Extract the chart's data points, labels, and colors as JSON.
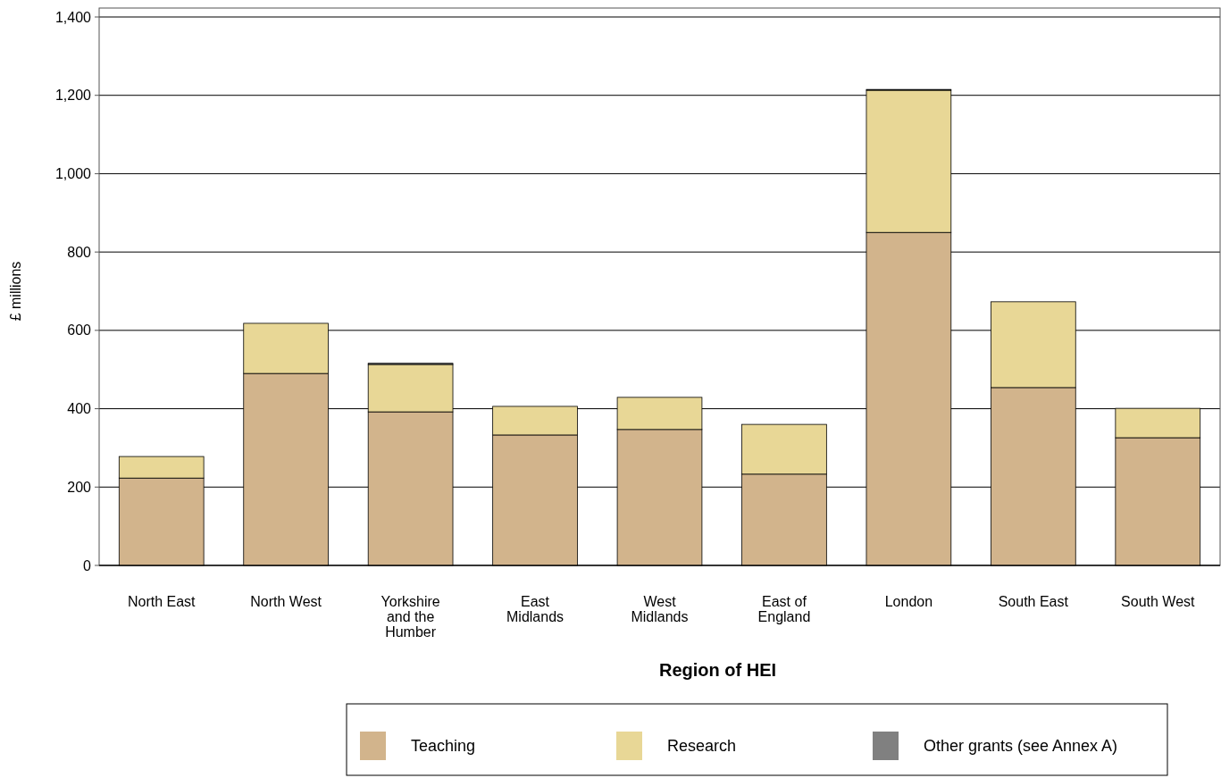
{
  "chart_data": {
    "type": "bar",
    "stacked": true,
    "xlabel": "Region of HEI",
    "ylabel": "£ millions",
    "categories": [
      "North East",
      "North West",
      "Yorkshire and the Humber",
      "East Midlands",
      "West Midlands",
      "East of England",
      "London",
      "South East",
      "South West"
    ],
    "series": [
      {
        "name": "Teaching",
        "color": "#d2b48c",
        "values": [
          223,
          490,
          392,
          333,
          347,
          233,
          850,
          454,
          326
        ]
      },
      {
        "name": "Research",
        "color": "#e8d796",
        "values": [
          55,
          128,
          121,
          73,
          82,
          127,
          363,
          219,
          75
        ]
      },
      {
        "name": "Other grants (see Annex A)",
        "color": "#808080",
        "values": [
          null,
          null,
          3,
          null,
          null,
          null,
          2,
          null,
          null
        ]
      }
    ],
    "ylim": [
      0,
      1400
    ],
    "yticks": [
      0,
      {
        "value": 200,
        "label": "200"
      },
      {
        "value": 400,
        "label": "400"
      },
      {
        "value": 600,
        "label": "600"
      },
      {
        "value": 800,
        "label": "800"
      },
      {
        "value": 1000,
        "label": "1,000"
      },
      {
        "value": 1200,
        "label": "1,200"
      },
      {
        "value": 1400,
        "label": "1,400"
      }
    ],
    "grid": "y",
    "legend": "bottom"
  }
}
